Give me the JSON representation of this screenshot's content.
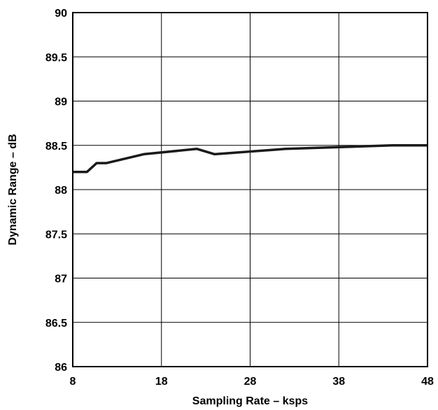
{
  "chart_data": {
    "type": "line",
    "title": "",
    "xlabel": "Sampling Rate – ksps",
    "ylabel": "Dynamic Range – dB",
    "xlim": [
      8,
      48
    ],
    "ylim": [
      86,
      90
    ],
    "grid": true,
    "legend": "none",
    "x_ticks": [
      8,
      18,
      28,
      38,
      48
    ],
    "x_tick_labels": [
      "8",
      "18",
      "28",
      "38",
      "48"
    ],
    "y_ticks": [
      86,
      86.5,
      87,
      87.5,
      88,
      88.5,
      89,
      89.5,
      90
    ],
    "y_tick_labels": [
      "86",
      "86.5",
      "87",
      "87.5",
      "88",
      "88.5",
      "89",
      "89.5",
      "90"
    ],
    "series": [
      {
        "color": "#1a1a1a",
        "x": [
          8,
          9.6,
          10.7,
          11.8,
          16,
          22,
          24,
          32,
          44,
          48
        ],
        "y": [
          88.2,
          88.2,
          88.3,
          88.3,
          88.4,
          88.46,
          88.4,
          88.46,
          88.5,
          88.5
        ]
      }
    ]
  }
}
